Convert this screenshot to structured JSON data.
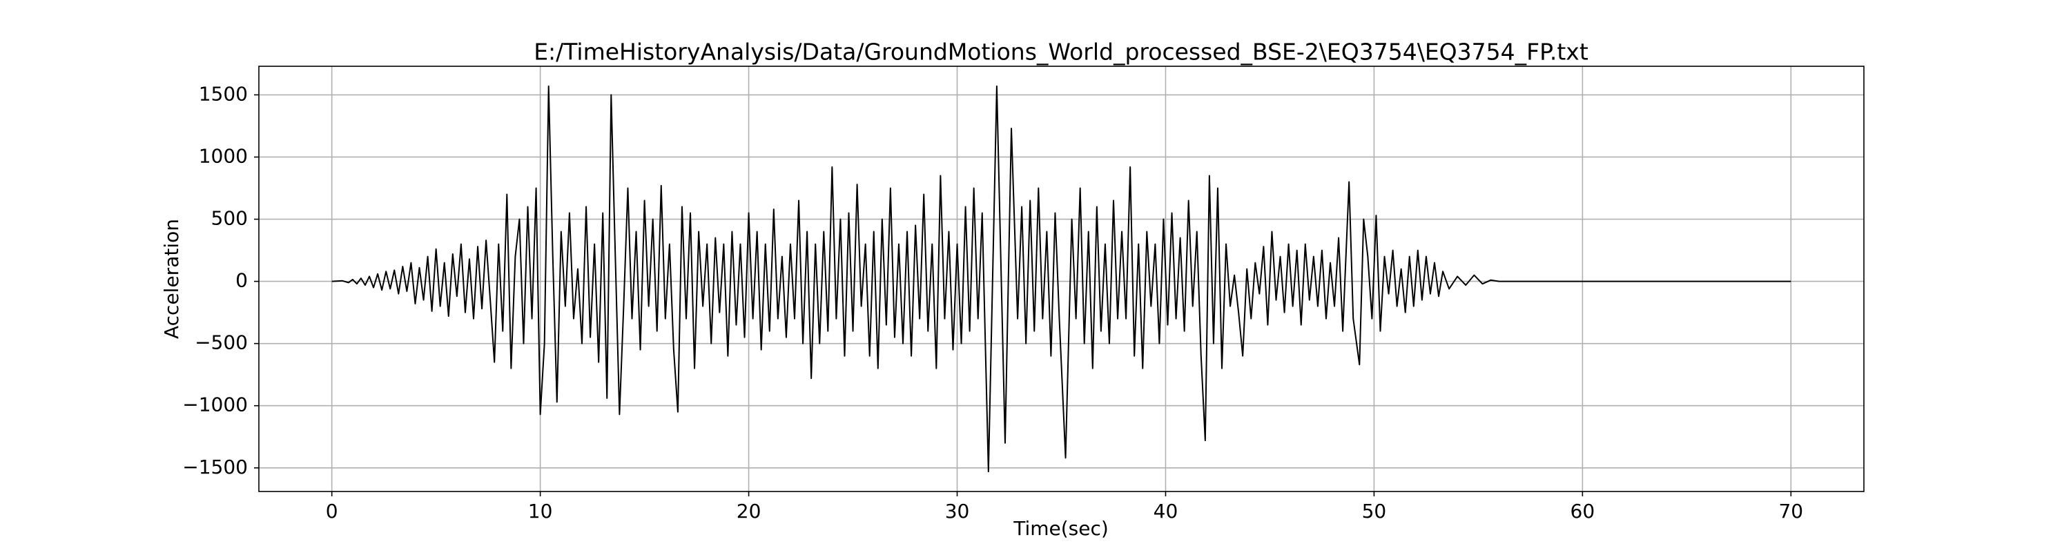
{
  "chart_data": {
    "type": "line",
    "title": "E:/TimeHistoryAnalysis/Data/GroundMotions_World_processed_BSE-2\\EQ3754\\EQ3754_FP.txt",
    "xlabel": "Time(sec)",
    "ylabel": "Acceleration",
    "color": "#000000",
    "grid": true,
    "xlim": [
      -3.5,
      73.5
    ],
    "ylim": [
      -1690,
      1730
    ],
    "xticks": [
      0,
      10,
      20,
      30,
      40,
      50,
      60,
      70
    ],
    "yticks": [
      {
        "value": -1500,
        "label": "−1500"
      },
      {
        "value": -1000,
        "label": "−1000"
      },
      {
        "value": -500,
        "label": "−500"
      },
      0,
      500,
      1000,
      1500
    ],
    "x": [
      0,
      0.5,
      0.8,
      1.0,
      1.2,
      1.4,
      1.6,
      1.8,
      2.0,
      2.2,
      2.4,
      2.6,
      2.8,
      3.0,
      3.2,
      3.4,
      3.6,
      3.8,
      4.0,
      4.2,
      4.4,
      4.6,
      4.8,
      5.0,
      5.2,
      5.4,
      5.6,
      5.8,
      6.0,
      6.2,
      6.4,
      6.6,
      6.8,
      7.0,
      7.2,
      7.4,
      7.6,
      7.8,
      8.0,
      8.2,
      8.4,
      8.6,
      8.8,
      9.0,
      9.2,
      9.4,
      9.6,
      9.8,
      10.0,
      10.2,
      10.4,
      10.6,
      10.8,
      11.0,
      11.2,
      11.4,
      11.6,
      11.8,
      12.0,
      12.2,
      12.4,
      12.6,
      12.8,
      13.0,
      13.2,
      13.4,
      13.6,
      13.8,
      14.0,
      14.2,
      14.4,
      14.6,
      14.8,
      15.0,
      15.2,
      15.4,
      15.6,
      15.8,
      16.0,
      16.2,
      16.4,
      16.6,
      16.8,
      17.0,
      17.2,
      17.4,
      17.6,
      17.8,
      18.0,
      18.2,
      18.4,
      18.6,
      18.8,
      19.0,
      19.2,
      19.4,
      19.6,
      19.8,
      20.0,
      20.2,
      20.4,
      20.6,
      20.8,
      21.0,
      21.2,
      21.4,
      21.6,
      21.8,
      22.0,
      22.2,
      22.4,
      22.6,
      22.8,
      23.0,
      23.2,
      23.4,
      23.6,
      23.8,
      24.0,
      24.2,
      24.4,
      24.6,
      24.8,
      25.0,
      25.2,
      25.4,
      25.6,
      25.8,
      26.0,
      26.2,
      26.4,
      26.6,
      26.8,
      27.0,
      27.2,
      27.4,
      27.6,
      27.8,
      28.0,
      28.2,
      28.4,
      28.6,
      28.8,
      29.0,
      29.2,
      29.4,
      29.6,
      29.8,
      30.0,
      30.2,
      30.4,
      30.6,
      30.8,
      31.0,
      31.2,
      31.5,
      31.9,
      32.3,
      32.6,
      32.9,
      33.1,
      33.3,
      33.5,
      33.7,
      33.9,
      34.1,
      34.3,
      34.5,
      34.7,
      34.9,
      35.2,
      35.5,
      35.7,
      35.9,
      36.1,
      36.3,
      36.5,
      36.7,
      36.9,
      37.1,
      37.3,
      37.5,
      37.7,
      37.9,
      38.1,
      38.3,
      38.5,
      38.7,
      38.9,
      39.1,
      39.3,
      39.5,
      39.7,
      39.9,
      40.1,
      40.3,
      40.5,
      40.7,
      40.9,
      41.1,
      41.3,
      41.5,
      41.7,
      41.9,
      42.1,
      42.3,
      42.5,
      42.7,
      42.9,
      43.1,
      43.3,
      43.5,
      43.7,
      43.9,
      44.1,
      44.3,
      44.5,
      44.7,
      44.9,
      45.1,
      45.3,
      45.5,
      45.7,
      45.9,
      46.1,
      46.3,
      46.5,
      46.7,
      46.9,
      47.1,
      47.3,
      47.5,
      47.7,
      47.9,
      48.1,
      48.3,
      48.5,
      48.8,
      49.0,
      49.3,
      49.5,
      49.7,
      49.9,
      50.1,
      50.3,
      50.5,
      50.7,
      50.9,
      51.1,
      51.3,
      51.5,
      51.7,
      51.9,
      52.1,
      52.3,
      52.5,
      52.7,
      52.9,
      53.1,
      53.3,
      53.6,
      54.0,
      54.4,
      54.8,
      55.2,
      55.6,
      56.0,
      70.0
    ],
    "values": [
      0,
      5,
      -10,
      15,
      -20,
      25,
      -30,
      40,
      -50,
      60,
      -70,
      80,
      -60,
      90,
      -100,
      120,
      -80,
      150,
      -180,
      110,
      -150,
      200,
      -240,
      260,
      -200,
      150,
      -280,
      220,
      -120,
      300,
      -250,
      180,
      -300,
      280,
      -220,
      330,
      -150,
      -650,
      300,
      -400,
      700,
      -700,
      200,
      500,
      -500,
      600,
      -300,
      750,
      -1070,
      -500,
      1570,
      200,
      -970,
      400,
      -200,
      550,
      -300,
      100,
      -500,
      600,
      -450,
      300,
      -650,
      550,
      -940,
      1500,
      200,
      -1070,
      -200,
      750,
      -300,
      400,
      -550,
      650,
      -200,
      500,
      -400,
      770,
      -300,
      300,
      -550,
      -1050,
      600,
      -300,
      550,
      -700,
      400,
      -200,
      300,
      -500,
      350,
      -250,
      300,
      -600,
      400,
      -350,
      300,
      -450,
      550,
      -300,
      400,
      -550,
      300,
      -400,
      580,
      -300,
      200,
      -450,
      300,
      -300,
      650,
      -500,
      400,
      -780,
      300,
      -500,
      400,
      -400,
      920,
      -300,
      500,
      -600,
      550,
      -400,
      780,
      -200,
      300,
      -600,
      400,
      -700,
      500,
      -350,
      750,
      -450,
      300,
      -500,
      400,
      -600,
      450,
      -300,
      700,
      -400,
      300,
      -700,
      850,
      -300,
      400,
      -550,
      300,
      -500,
      600,
      -400,
      750,
      -300,
      550,
      -1530,
      1570,
      -1300,
      1230,
      -300,
      600,
      -500,
      650,
      -400,
      750,
      -300,
      400,
      -600,
      550,
      -300,
      -1420,
      500,
      -300,
      750,
      -500,
      400,
      -700,
      600,
      -400,
      300,
      -500,
      650,
      -300,
      400,
      -300,
      920,
      -600,
      300,
      -700,
      400,
      -200,
      300,
      -500,
      500,
      -350,
      550,
      -300,
      350,
      -400,
      650,
      -200,
      400,
      -600,
      -1280,
      850,
      -500,
      750,
      -700,
      300,
      -200,
      50,
      -250,
      -600,
      100,
      -300,
      150,
      -100,
      280,
      -350,
      400,
      -150,
      200,
      -250,
      300,
      -200,
      250,
      -350,
      300,
      -150,
      200,
      -200,
      250,
      -300,
      150,
      -200,
      350,
      -400,
      800,
      -300,
      -670,
      500,
      200,
      -300,
      530,
      -400,
      200,
      -100,
      250,
      -200,
      100,
      -250,
      200,
      -200,
      250,
      -150,
      200,
      -100,
      150,
      -120,
      80,
      -60,
      40,
      -30,
      50,
      -20,
      10,
      0,
      0
    ]
  }
}
